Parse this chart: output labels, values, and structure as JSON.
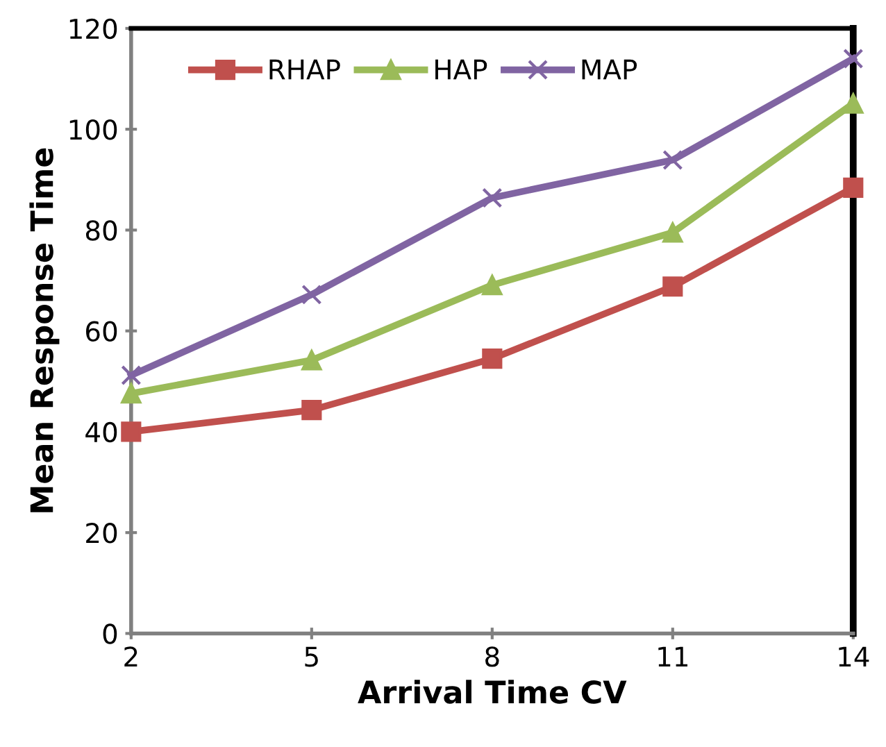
{
  "chart_data": {
    "type": "line",
    "xlabel": "Arrival Time CV",
    "ylabel": "Mean Response Time",
    "x": [
      2,
      5,
      8,
      11,
      14
    ],
    "xlim": [
      2,
      14
    ],
    "xticks": [
      2,
      5,
      8,
      11,
      14
    ],
    "ylim": [
      0,
      120
    ],
    "yticks": [
      0,
      20,
      40,
      60,
      80,
      100,
      120
    ],
    "grid": false,
    "legend": "top left",
    "series": [
      {
        "name": "RHAP",
        "color": "#c0504d",
        "marker": "square",
        "values": [
          40,
          44.3,
          54.5,
          68.8,
          88.4
        ]
      },
      {
        "name": "HAP",
        "color": "#9bbb59",
        "marker": "triangle",
        "values": [
          47.6,
          54.2,
          69.1,
          79.5,
          105.1
        ]
      },
      {
        "name": "MAP",
        "color": "#8064a2",
        "marker": "cross",
        "values": [
          51.2,
          67.2,
          86.4,
          93.9,
          114
        ]
      }
    ]
  }
}
